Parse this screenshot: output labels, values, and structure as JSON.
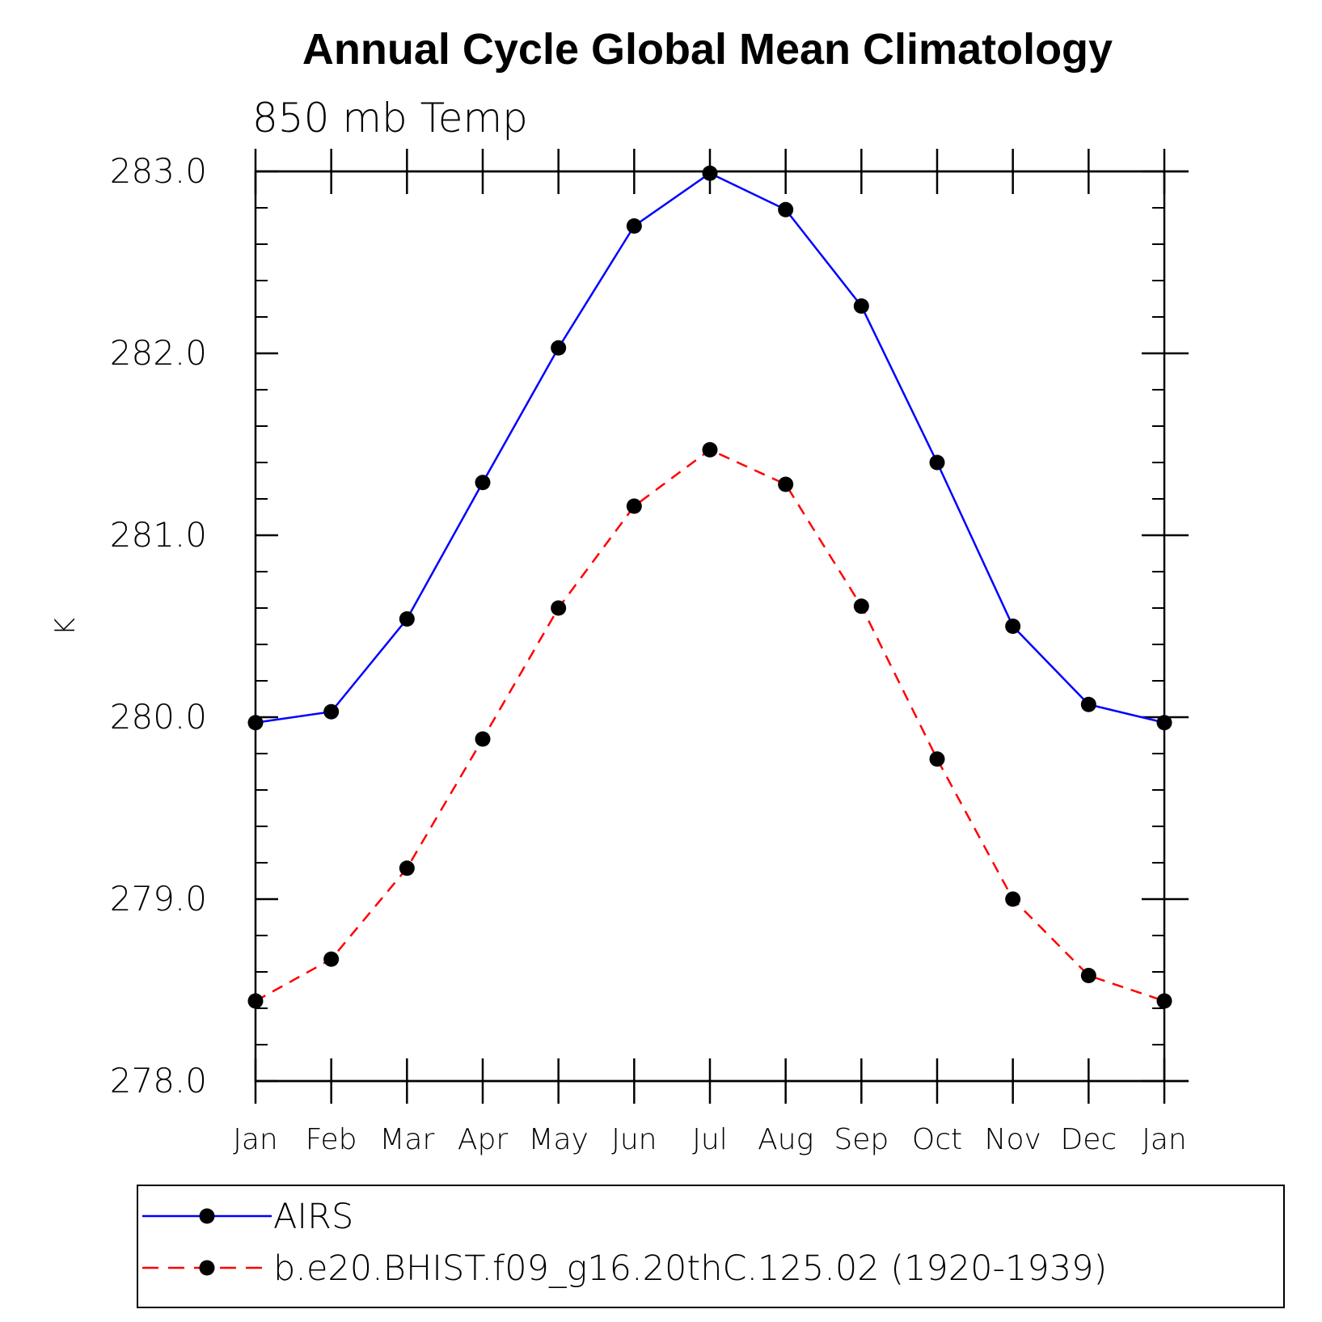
{
  "chart_data": {
    "type": "line",
    "title": "Annual Cycle Global Mean Climatology",
    "subtitle": "850 mb Temp",
    "xlabel": "",
    "ylabel": "K",
    "categories": [
      "Jan",
      "Feb",
      "Mar",
      "Apr",
      "May",
      "Jun",
      "Jul",
      "Aug",
      "Sep",
      "Oct",
      "Nov",
      "Dec",
      "Jan"
    ],
    "ylim": [
      278.0,
      283.0
    ],
    "yticks": [
      278.0,
      279.0,
      280.0,
      281.0,
      282.0,
      283.0
    ],
    "ytick_labels": [
      "278.0",
      "279.0",
      "280.0",
      "281.0",
      "282.0",
      "283.0"
    ],
    "y_minor_step": 0.2,
    "grid": false,
    "legend_position": "bottom",
    "series": [
      {
        "name": "AIRS",
        "color": "#0000ff",
        "dashed": false,
        "values": [
          279.97,
          280.03,
          280.54,
          281.29,
          282.03,
          282.7,
          282.99,
          282.79,
          282.26,
          281.4,
          280.5,
          280.07,
          279.97
        ]
      },
      {
        "name": "b.e20.BHIST.f09_g16.20thC.125.02 (1920-1939)",
        "color": "#ff0000",
        "dashed": true,
        "values": [
          278.44,
          278.67,
          279.17,
          279.88,
          280.6,
          281.16,
          281.47,
          281.28,
          280.61,
          279.77,
          279.0,
          278.58,
          278.44
        ]
      }
    ]
  }
}
